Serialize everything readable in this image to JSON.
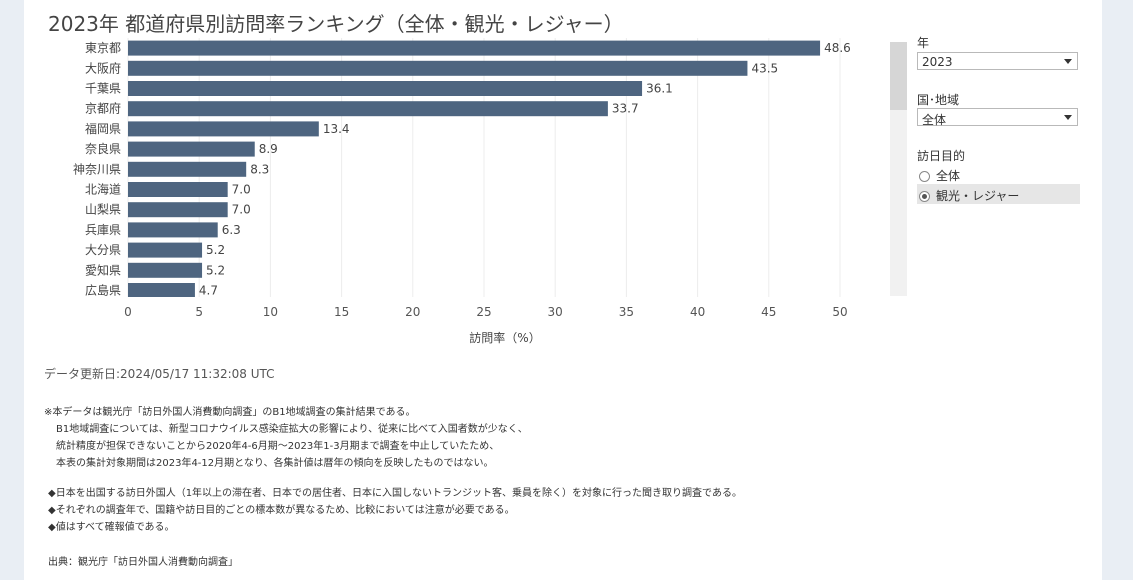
{
  "title": "2023年 都道府県別訪問率ランキング（全体・観光・レジャー）",
  "filters": {
    "year_label": "年",
    "year_value": "2023",
    "country_label": "国･地域",
    "country_value": "全体",
    "purpose_label": "訪日目的",
    "purpose_options": [
      {
        "label": "全体",
        "selected": false
      },
      {
        "label": "観光・レジャー",
        "selected": true
      }
    ]
  },
  "chart_data": {
    "type": "bar",
    "orientation": "horizontal",
    "categories": [
      "東京都",
      "大阪府",
      "千葉県",
      "京都府",
      "福岡県",
      "奈良県",
      "神奈川県",
      "北海道",
      "山梨県",
      "兵庫県",
      "大分県",
      "愛知県",
      "広島県"
    ],
    "values": [
      48.6,
      43.5,
      36.1,
      33.7,
      13.4,
      8.9,
      8.3,
      7.0,
      7.0,
      6.3,
      5.2,
      5.2,
      4.7
    ],
    "value_labels": [
      "48.6",
      "43.5",
      "36.1",
      "33.7",
      "13.4",
      "8.9",
      "8.3",
      "7.0",
      "7.0",
      "6.3",
      "5.2",
      "5.2",
      "4.7"
    ],
    "xlabel": "訪問率（%）",
    "xlim": [
      0,
      55
    ],
    "xticks": [
      0,
      5,
      10,
      15,
      20,
      25,
      30,
      35,
      40,
      45,
      50
    ],
    "grid": true,
    "bar_color": "#4e6580"
  },
  "updated": "データ更新日:2024/05/17 11:32:08 UTC",
  "notes": [
    "※本データは観光庁「訪日外国人消費動向調査」のB1地域調査の集計結果である。",
    "B1地域調査については、新型コロナウイルス感染症拡大の影響により、従来に比べて入国者数が少なく、",
    "統計精度が担保できないことから2020年4-6月期～2023年1-3月期まで調査を中止していたため、",
    "本表の集計対象期間は2023年4-12月期となり、各集計値は暦年の傾向を反映したものではない。"
  ],
  "bullets": [
    "◆日本を出国する訪日外国人（1年以上の滞在者、日本での居住者、日本に入国しないトランジット客、乗員を除く）を対象に行った聞き取り調査である。",
    "◆それぞれの調査年で、国籍や訪日目的ごとの標本数が異なるため、比較においては注意が必要である。",
    "◆値はすべて確報値である。"
  ],
  "source": "出典：観光庁「訪日外国人消費動向調査」"
}
